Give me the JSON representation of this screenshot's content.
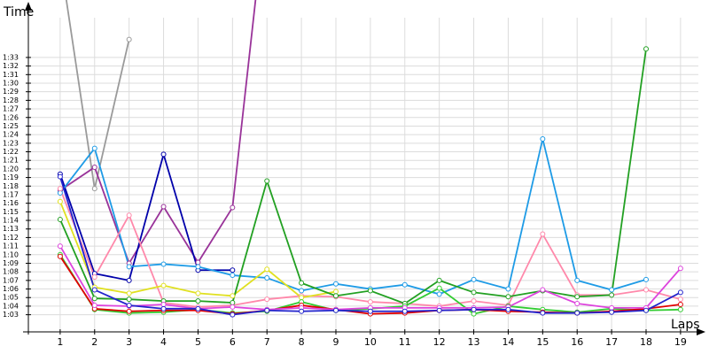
{
  "chart_data": {
    "type": "line",
    "y_label": "Time",
    "x_label": "Laps",
    "x": [
      1,
      2,
      3,
      4,
      5,
      6,
      7,
      8,
      9,
      10,
      11,
      12,
      13,
      14,
      15,
      16,
      17,
      18,
      19
    ],
    "xlim": [
      0,
      19.8
    ],
    "xticks": [
      1,
      2,
      3,
      4,
      5,
      6,
      7,
      8,
      9,
      10,
      11,
      12,
      13,
      14,
      15,
      16,
      17,
      18,
      19
    ],
    "ylim": [
      61,
      99.7
    ],
    "yticks": [
      {
        "value": 63,
        "label": "1:03"
      },
      {
        "value": 64,
        "label": "1:04"
      },
      {
        "value": 65,
        "label": "1:05"
      },
      {
        "value": 66,
        "label": "1:06"
      },
      {
        "value": 67,
        "label": "1:07"
      },
      {
        "value": 68,
        "label": "1:08"
      },
      {
        "value": 69,
        "label": "1:09"
      },
      {
        "value": 70,
        "label": "1:10"
      },
      {
        "value": 71,
        "label": "1:11"
      },
      {
        "value": 72,
        "label": "1:12"
      },
      {
        "value": 73,
        "label": "1:13"
      },
      {
        "value": 74,
        "label": "1:14"
      },
      {
        "value": 75,
        "label": "1:15"
      },
      {
        "value": 76,
        "label": "1:16"
      },
      {
        "value": 77,
        "label": "1:17"
      },
      {
        "value": 78,
        "label": "1:18"
      },
      {
        "value": 79,
        "label": "1:19"
      },
      {
        "value": 80,
        "label": "1:20"
      },
      {
        "value": 81,
        "label": "1:21"
      },
      {
        "value": 82,
        "label": "1:22"
      },
      {
        "value": 83,
        "label": "1:23"
      },
      {
        "value": 84,
        "label": "1:24"
      },
      {
        "value": 85,
        "label": "1:25"
      },
      {
        "value": 86,
        "label": "1:26"
      },
      {
        "value": 87,
        "label": "1:27"
      },
      {
        "value": 88,
        "label": "1:28"
      },
      {
        "value": 89,
        "label": "1:29"
      },
      {
        "value": 90,
        "label": "1:30"
      },
      {
        "value": 91,
        "label": "1:31"
      },
      {
        "value": 92,
        "label": "1:32"
      },
      {
        "value": 93,
        "label": "1:33"
      }
    ],
    "grid": true,
    "series": [
      {
        "color": "#9a9a9a",
        "values": [
          104.5,
          77.7,
          95.1,
          null,
          null,
          null,
          null,
          null,
          null,
          null,
          null,
          null,
          null,
          null,
          null,
          null,
          null,
          null,
          null
        ]
      },
      {
        "color": "#993399",
        "values": [
          77.5,
          80.2,
          69.0,
          75.6,
          69.1,
          75.5,
          111.7,
          null,
          null,
          null,
          null,
          null,
          null,
          null,
          null,
          null,
          null,
          null,
          null
        ]
      },
      {
        "color": "#0000aa",
        "values": [
          79.4,
          67.8,
          67.0,
          81.7,
          68.2,
          68.2,
          null,
          null,
          null,
          null,
          null,
          null,
          null,
          null,
          null,
          null,
          null,
          null,
          null
        ]
      },
      {
        "color": "#1e9be6",
        "values": [
          77.2,
          82.4,
          68.6,
          68.9,
          68.6,
          67.6,
          67.3,
          65.8,
          66.6,
          66.0,
          66.5,
          65.4,
          67.1,
          66.0,
          83.5,
          67.0,
          65.9,
          67.1,
          null
        ]
      },
      {
        "color": "#ff88aa",
        "values": [
          77.7,
          67.4,
          74.6,
          64.4,
          63.9,
          64.1,
          64.8,
          65.2,
          65.1,
          64.5,
          64.3,
          64.0,
          64.6,
          64.1,
          72.4,
          65.3,
          65.3,
          65.9,
          64.8
        ]
      },
      {
        "color": "#e0e020",
        "values": [
          76.2,
          66.2,
          65.5,
          66.4,
          65.5,
          65.2,
          68.3,
          65.0,
          65.7,
          null,
          null,
          null,
          null,
          null,
          null,
          null,
          null,
          null,
          null
        ]
      },
      {
        "color": "#22a022",
        "values": [
          74.1,
          64.9,
          64.8,
          64.6,
          64.6,
          64.4,
          78.6,
          66.7,
          65.2,
          65.8,
          64.3,
          67.0,
          65.6,
          65.1,
          65.8,
          65.1,
          65.3,
          94.0,
          null
        ]
      },
      {
        "color": "#33cc33",
        "values": [
          70.0,
          63.6,
          63.2,
          63.3,
          63.6,
          63.2,
          63.4,
          64.5,
          63.5,
          63.7,
          64.0,
          66.1,
          63.1,
          64.0,
          63.6,
          63.3,
          63.7,
          63.5,
          63.6
        ]
      },
      {
        "color": "#e00000",
        "values": [
          69.8,
          63.7,
          63.4,
          63.5,
          63.5,
          63.1,
          63.5,
          64.1,
          63.6,
          63.1,
          63.2,
          63.5,
          63.6,
          63.4,
          63.3,
          63.2,
          63.4,
          63.7,
          64.2
        ]
      },
      {
        "color": "#dd44dd",
        "values": [
          71.0,
          64.1,
          64.0,
          64.2,
          63.7,
          63.9,
          63.6,
          63.8,
          63.6,
          63.8,
          63.8,
          63.8,
          63.8,
          63.9,
          65.9,
          64.3,
          63.8,
          63.8,
          68.4
        ]
      },
      {
        "color": "#2222cc",
        "values": [
          79.1,
          65.9,
          64.1,
          63.7,
          63.7,
          63.0,
          63.5,
          63.4,
          63.5,
          63.4,
          63.4,
          63.5,
          63.6,
          63.6,
          63.2,
          63.2,
          63.3,
          63.5,
          65.6
        ]
      }
    ]
  }
}
